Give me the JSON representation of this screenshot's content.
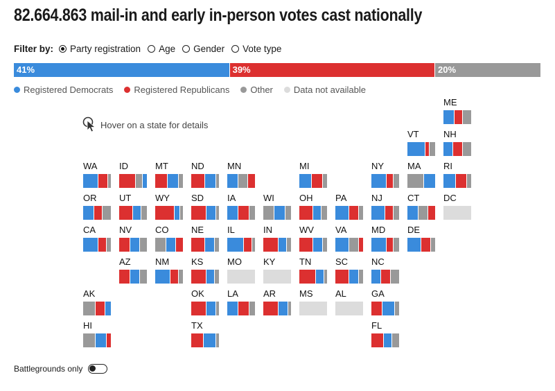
{
  "title": "82.664.863 mail-in and early in-person votes cast nationally",
  "filter": {
    "label": "Filter by:",
    "options": [
      {
        "label": "Party registration",
        "checked": true
      },
      {
        "label": "Age",
        "checked": false
      },
      {
        "label": "Gender",
        "checked": false
      },
      {
        "label": "Vote type",
        "checked": false
      }
    ]
  },
  "hover_hint": "Hover on a state for details",
  "battleground": {
    "label": "Battlegrounds only",
    "on": false
  },
  "colors": {
    "dem": "#3a8bdc",
    "rep": "#dc3030",
    "other": "#999999",
    "na": "#dcdcdc"
  },
  "chart_data": {
    "type": "bar",
    "national": {
      "segments": [
        {
          "key": "dem",
          "value": 41,
          "label": "41%"
        },
        {
          "key": "rep",
          "value": 39,
          "label": "39%"
        },
        {
          "key": "other",
          "value": 20,
          "label": "20%"
        }
      ]
    },
    "legend": [
      {
        "key": "dem",
        "label": "Registered Democrats"
      },
      {
        "key": "rep",
        "label": "Registered Republicans"
      },
      {
        "key": "other",
        "label": "Other"
      },
      {
        "key": "na",
        "label": "Data not available"
      }
    ],
    "states": [
      {
        "code": "ME",
        "col": 10,
        "row": 0,
        "values": [
          40,
          30,
          30
        ]
      },
      {
        "code": "VT",
        "col": 9,
        "row": 1,
        "values": [
          65,
          15,
          20
        ]
      },
      {
        "code": "NH",
        "col": 10,
        "row": 1,
        "values": [
          35,
          35,
          30
        ]
      },
      {
        "code": "WA",
        "col": 0,
        "row": 2,
        "values": [
          55,
          35,
          10
        ]
      },
      {
        "code": "ID",
        "col": 1,
        "row": 2,
        "values": [
          60,
          25,
          15
        ],
        "order": [
          "rep",
          "other",
          "dem"
        ]
      },
      {
        "code": "MT",
        "col": 2,
        "row": 2,
        "values": [
          45,
          40,
          15
        ],
        "order": [
          "rep",
          "dem",
          "other"
        ]
      },
      {
        "code": "ND",
        "col": 3,
        "row": 2,
        "values": [
          50,
          40,
          10
        ],
        "order": [
          "rep",
          "dem",
          "other"
        ]
      },
      {
        "code": "MN",
        "col": 4,
        "row": 2,
        "values": [
          40,
          35,
          25
        ],
        "order": [
          "dem",
          "other",
          "rep"
        ]
      },
      {
        "code": "MI",
        "col": 6,
        "row": 2,
        "values": [
          45,
          40,
          15
        ]
      },
      {
        "code": "NY",
        "col": 8,
        "row": 2,
        "values": [
          55,
          25,
          20
        ]
      },
      {
        "code": "MA",
        "col": 9,
        "row": 2,
        "values": [
          60,
          40,
          0
        ],
        "order": [
          "other",
          "dem",
          "rep"
        ]
      },
      {
        "code": "RI",
        "col": 10,
        "row": 2,
        "values": [
          45,
          40,
          15
        ]
      },
      {
        "code": "OR",
        "col": 0,
        "row": 3,
        "values": [
          40,
          30,
          30
        ],
        "order": [
          "dem",
          "rep",
          "other"
        ]
      },
      {
        "code": "UT",
        "col": 1,
        "row": 3,
        "values": [
          50,
          30,
          20
        ],
        "order": [
          "rep",
          "dem",
          "other"
        ]
      },
      {
        "code": "WY",
        "col": 2,
        "row": 3,
        "values": [
          70,
          20,
          10
        ],
        "order": [
          "rep",
          "dem",
          "other"
        ]
      },
      {
        "code": "SD",
        "col": 3,
        "row": 3,
        "values": [
          55,
          35,
          10
        ],
        "order": [
          "rep",
          "dem",
          "other"
        ]
      },
      {
        "code": "IA",
        "col": 4,
        "row": 3,
        "values": [
          40,
          40,
          20
        ]
      },
      {
        "code": "WI",
        "col": 5,
        "row": 3,
        "values": [
          40,
          40,
          20
        ],
        "order": [
          "other",
          "dem",
          "other2"
        ]
      },
      {
        "code": "OH",
        "col": 6,
        "row": 3,
        "values": [
          50,
          30,
          20
        ],
        "order": [
          "rep",
          "dem",
          "other"
        ]
      },
      {
        "code": "PA",
        "col": 7,
        "row": 3,
        "values": [
          50,
          35,
          15
        ]
      },
      {
        "code": "NJ",
        "col": 8,
        "row": 3,
        "values": [
          50,
          30,
          20
        ]
      },
      {
        "code": "CT",
        "col": 9,
        "row": 3,
        "values": [
          40,
          35,
          25
        ],
        "order": [
          "dem",
          "other",
          "rep"
        ]
      },
      {
        "code": "DC",
        "col": 10,
        "row": 3,
        "values": null
      },
      {
        "code": "CA",
        "col": 0,
        "row": 4,
        "values": [
          55,
          30,
          15
        ]
      },
      {
        "code": "NV",
        "col": 1,
        "row": 4,
        "values": [
          40,
          35,
          25
        ],
        "order": [
          "rep",
          "dem",
          "other"
        ]
      },
      {
        "code": "CO",
        "col": 2,
        "row": 4,
        "values": [
          40,
          35,
          25
        ],
        "order": [
          "other",
          "dem",
          "rep"
        ]
      },
      {
        "code": "NE",
        "col": 3,
        "row": 4,
        "values": [
          50,
          35,
          15
        ],
        "order": [
          "rep",
          "dem",
          "other"
        ]
      },
      {
        "code": "IL",
        "col": 4,
        "row": 4,
        "values": [
          60,
          30,
          10
        ]
      },
      {
        "code": "IN",
        "col": 5,
        "row": 4,
        "values": [
          55,
          30,
          15
        ],
        "order": [
          "rep",
          "dem",
          "other"
        ]
      },
      {
        "code": "WV",
        "col": 6,
        "row": 4,
        "values": [
          50,
          35,
          15
        ],
        "order": [
          "rep",
          "dem",
          "other"
        ]
      },
      {
        "code": "VA",
        "col": 7,
        "row": 4,
        "values": [
          50,
          35,
          15
        ],
        "order": [
          "dem",
          "other",
          "rep"
        ]
      },
      {
        "code": "MD",
        "col": 8,
        "row": 4,
        "values": [
          55,
          25,
          20
        ]
      },
      {
        "code": "DE",
        "col": 9,
        "row": 4,
        "values": [
          50,
          35,
          15
        ]
      },
      {
        "code": "AZ",
        "col": 1,
        "row": 5,
        "values": [
          40,
          35,
          25
        ],
        "order": [
          "rep",
          "dem",
          "other"
        ]
      },
      {
        "code": "NM",
        "col": 2,
        "row": 5,
        "values": [
          55,
          30,
          15
        ]
      },
      {
        "code": "KS",
        "col": 3,
        "row": 5,
        "values": [
          55,
          30,
          15
        ],
        "order": [
          "rep",
          "dem",
          "other"
        ]
      },
      {
        "code": "MO",
        "col": 4,
        "row": 5,
        "values": null
      },
      {
        "code": "KY",
        "col": 5,
        "row": 5,
        "values": null
      },
      {
        "code": "TN",
        "col": 6,
        "row": 5,
        "values": [
          60,
          30,
          10
        ],
        "order": [
          "rep",
          "dem",
          "other"
        ]
      },
      {
        "code": "SC",
        "col": 7,
        "row": 5,
        "values": [
          50,
          35,
          15
        ],
        "order": [
          "rep",
          "dem",
          "other"
        ]
      },
      {
        "code": "NC",
        "col": 8,
        "row": 5,
        "values": [
          35,
          35,
          30
        ]
      },
      {
        "code": "AK",
        "col": 0,
        "row": 6,
        "values": [
          45,
          35,
          20
        ],
        "order": [
          "other",
          "rep",
          "dem"
        ]
      },
      {
        "code": "OK",
        "col": 3,
        "row": 6,
        "values": [
          55,
          35,
          10
        ],
        "order": [
          "rep",
          "dem",
          "other"
        ]
      },
      {
        "code": "LA",
        "col": 4,
        "row": 6,
        "values": [
          40,
          40,
          20
        ]
      },
      {
        "code": "AR",
        "col": 5,
        "row": 6,
        "values": [
          55,
          35,
          10
        ],
        "order": [
          "rep",
          "dem",
          "other"
        ]
      },
      {
        "code": "MS",
        "col": 6,
        "row": 6,
        "values": null
      },
      {
        "code": "AL",
        "col": 7,
        "row": 6,
        "values": null
      },
      {
        "code": "GA",
        "col": 8,
        "row": 6,
        "values": [
          40,
          45,
          15
        ],
        "order": [
          "rep",
          "dem",
          "other"
        ]
      },
      {
        "code": "HI",
        "col": 0,
        "row": 7,
        "values": [
          45,
          40,
          15
        ],
        "order": [
          "other",
          "dem",
          "rep"
        ]
      },
      {
        "code": "TX",
        "col": 3,
        "row": 7,
        "values": [
          45,
          45,
          10
        ],
        "order": [
          "rep",
          "dem",
          "other"
        ]
      },
      {
        "code": "FL",
        "col": 8,
        "row": 7,
        "values": [
          45,
          30,
          25
        ],
        "order": [
          "rep",
          "dem",
          "other"
        ]
      }
    ]
  }
}
